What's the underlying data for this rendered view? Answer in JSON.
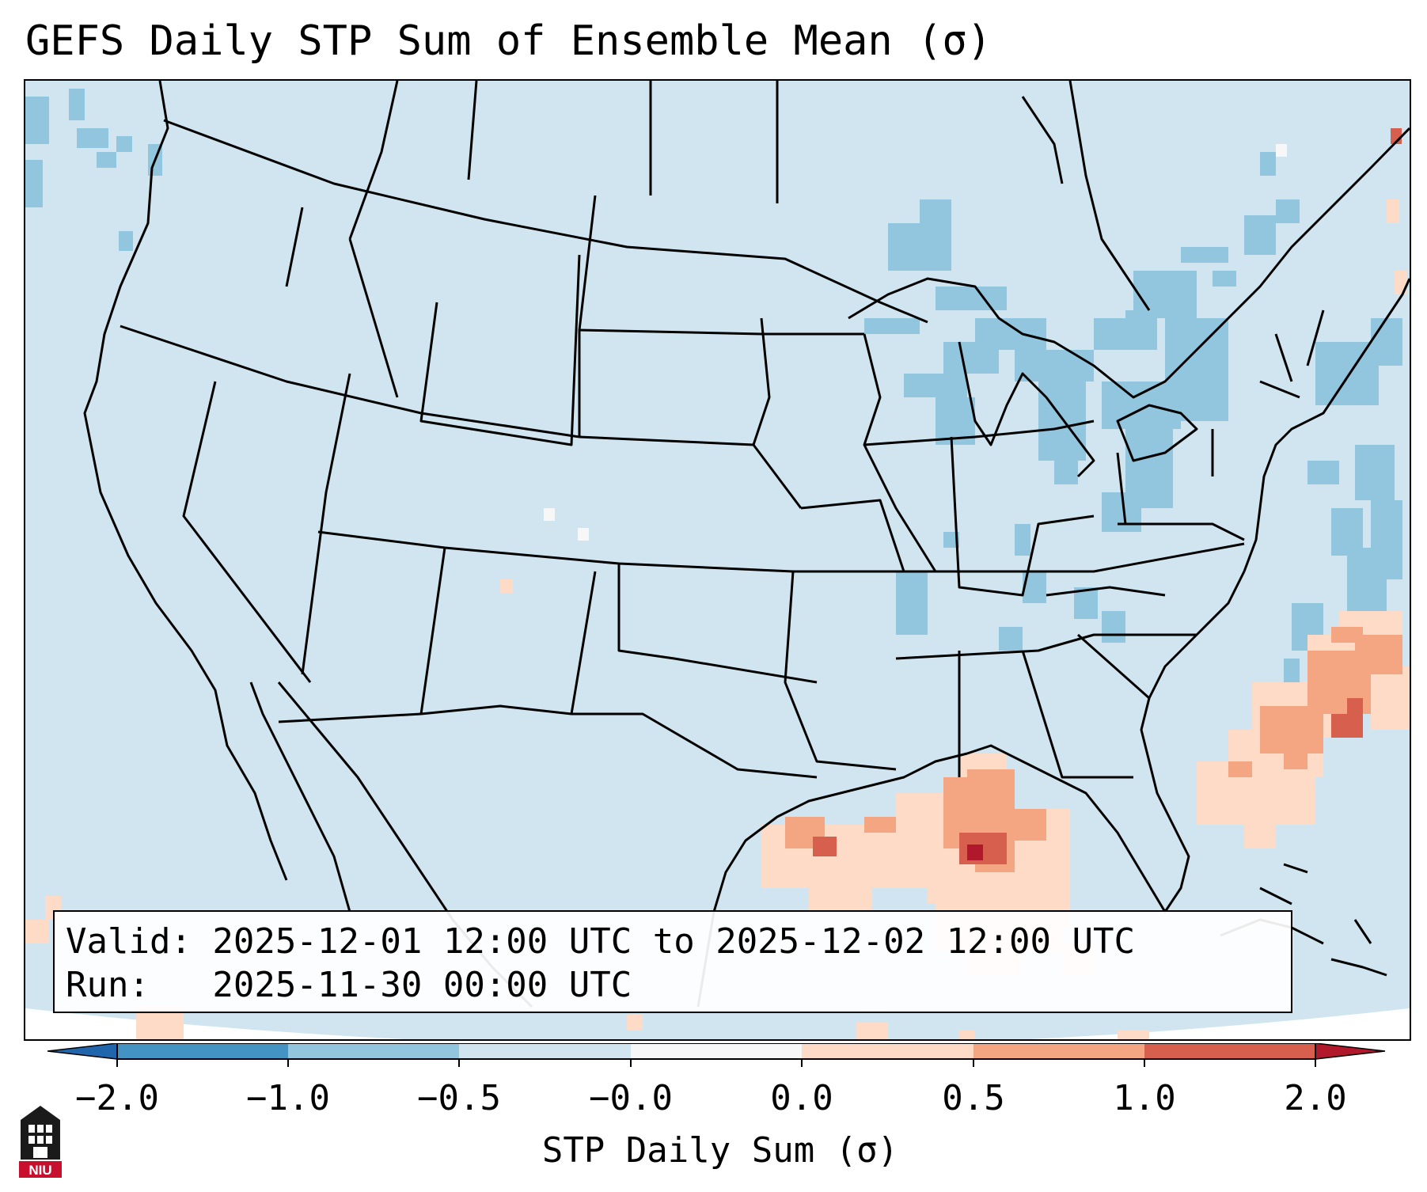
{
  "title": "GEFS Daily STP Sum of Ensemble Mean (σ)",
  "valid_line": "Valid: 2025-12-01 12:00 UTC to 2025-12-02 12:00 UTC",
  "run_line": "Run:   2025-11-30 00:00 UTC",
  "colorbar": {
    "label": "STP Daily Sum (σ)",
    "ticks": [
      "−2.0",
      "−1.0",
      "−0.5",
      "−0.0",
      "0.0",
      "0.5",
      "1.0",
      "2.0"
    ],
    "colors": [
      "#2166ac",
      "#4393c3",
      "#92c5de",
      "#d1e5f0",
      "#f7f7f7",
      "#fddbc7",
      "#f4a582",
      "#d6604d",
      "#b2182b"
    ]
  },
  "colors": {
    "background_field": "#d1e5f0",
    "neg_mid": "#92c5de",
    "pos_low": "#fddbc7",
    "pos_mid": "#f4a582",
    "pos_high": "#d6604d",
    "pos_max": "#b2182b"
  },
  "logo": {
    "text": "NIU",
    "icon": "niu-tower-logo-icon"
  }
}
